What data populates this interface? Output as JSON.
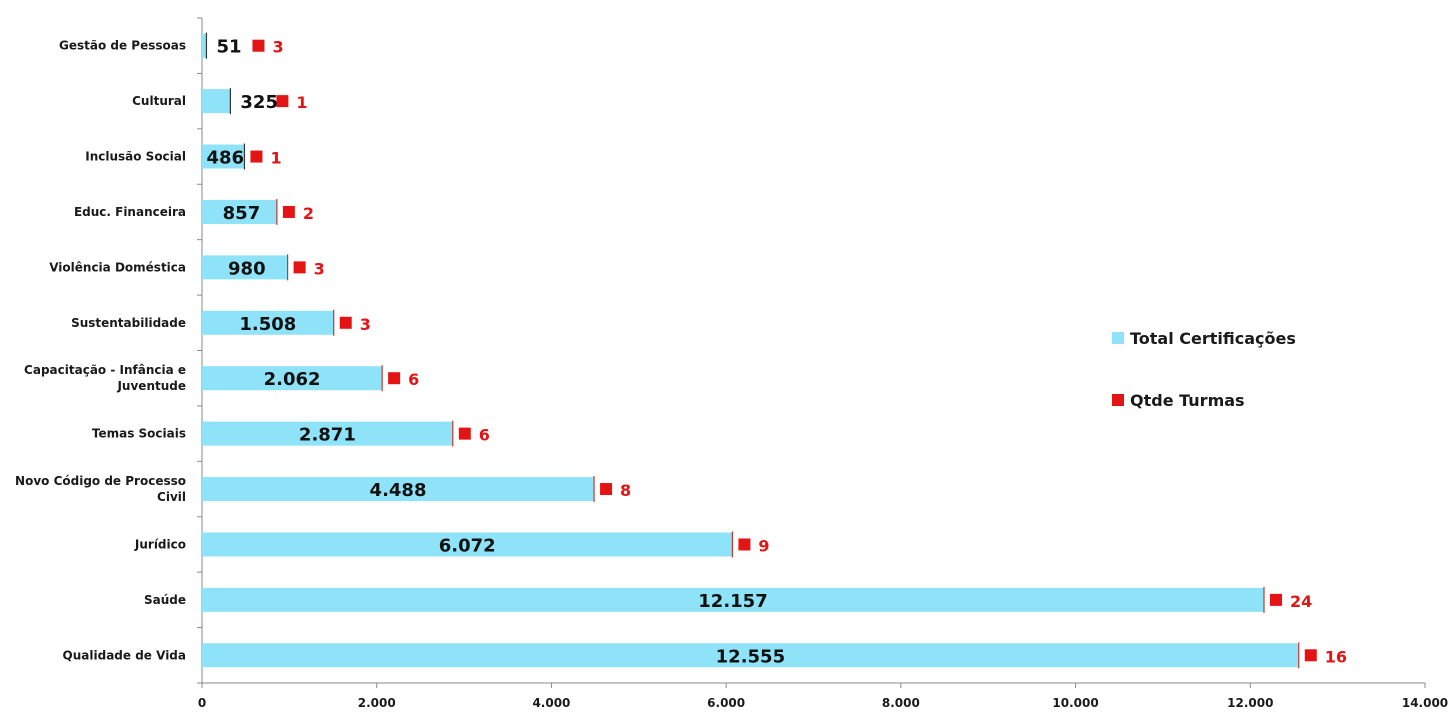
{
  "chart_data": {
    "type": "bar",
    "orientation": "horizontal",
    "categories": [
      "Gestão de Pessoas",
      "Cultural",
      "Inclusão Social",
      "Educ. Financeira",
      "Violência Doméstica",
      "Sustentabilidade",
      "Capacitação - Infância e Juventude",
      "Temas Sociais",
      "Novo Código de Processo Civil",
      "Jurídico",
      "Saúde",
      "Qualidade de Vida"
    ],
    "series": [
      {
        "name": "Total Certificações",
        "values": [
          51,
          325,
          486,
          857,
          980,
          1508,
          2062,
          2871,
          4488,
          6072,
          12157,
          12555
        ],
        "value_labels": [
          "51",
          "325",
          "486",
          "857",
          "980",
          "1.508",
          "2.062",
          "2.871",
          "4.488",
          "6.072",
          "12.157",
          "12.555"
        ],
        "color": "#8ee3f8"
      },
      {
        "name": "Qtde Turmas",
        "values": [
          3,
          1,
          1,
          2,
          3,
          3,
          6,
          6,
          8,
          9,
          24,
          16
        ],
        "value_labels": [
          "3",
          "1",
          "1",
          "2",
          "3",
          "3",
          "6",
          "6",
          "8",
          "9",
          "24",
          "16"
        ],
        "color": "#e41414"
      }
    ],
    "xlim": [
      0,
      14000
    ],
    "xticks": [
      0,
      2000,
      4000,
      6000,
      8000,
      10000,
      12000,
      14000
    ],
    "xtick_labels": [
      "0",
      "2.000",
      "4.000",
      "6.000",
      "8.000",
      "10.000",
      "12.000",
      "14.000"
    ],
    "title": "",
    "xlabel": "",
    "ylabel": "",
    "grid": false,
    "legend_position": "right"
  }
}
